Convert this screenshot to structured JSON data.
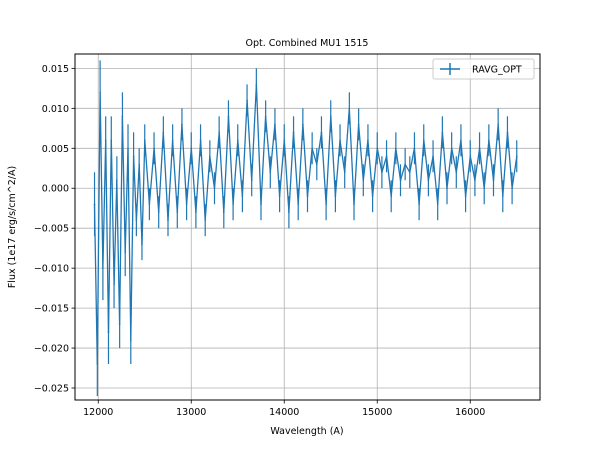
{
  "chart_data": {
    "type": "line",
    "title": "Opt. Combined MU1 1515",
    "xlabel": "Wavelength (A)",
    "ylabel": "Flux (1e17 erg/s/cm^2/A)",
    "xlim": [
      11750,
      16750
    ],
    "ylim": [
      -0.0265,
      0.0168
    ],
    "xticks": [
      12000,
      13000,
      14000,
      15000,
      16000
    ],
    "xtick_labels": [
      "12000",
      "13000",
      "14000",
      "15000",
      "16000"
    ],
    "yticks": [
      -0.025,
      -0.02,
      -0.015,
      -0.01,
      -0.005,
      0.0,
      0.005,
      0.01,
      0.015
    ],
    "ytick_labels": [
      "−0.025",
      "−0.020",
      "−0.015",
      "−0.010",
      "−0.005",
      "0.000",
      "0.005",
      "0.010",
      "0.015"
    ],
    "grid": true,
    "legend_position": "top-right",
    "series": [
      {
        "name": "RAVG_OPT",
        "color": "#1f77b4",
        "errorbars": true,
        "x": [
          11960,
          11990,
          12020,
          12050,
          12080,
          12110,
          12140,
          12170,
          12200,
          12230,
          12260,
          12290,
          12320,
          12350,
          12380,
          12410,
          12440,
          12470,
          12500,
          12550,
          12600,
          12650,
          12700,
          12750,
          12800,
          12850,
          12900,
          12950,
          13000,
          13050,
          13100,
          13150,
          13200,
          13250,
          13300,
          13350,
          13400,
          13450,
          13500,
          13550,
          13600,
          13650,
          13700,
          13750,
          13800,
          13850,
          13900,
          13950,
          14000,
          14050,
          14100,
          14150,
          14200,
          14250,
          14300,
          14350,
          14400,
          14450,
          14500,
          14550,
          14600,
          14650,
          14700,
          14750,
          14800,
          14850,
          14900,
          14950,
          15000,
          15050,
          15100,
          15150,
          15200,
          15250,
          15300,
          15350,
          15400,
          15450,
          15500,
          15550,
          15600,
          15650,
          15700,
          15750,
          15800,
          15850,
          15900,
          15950,
          16000,
          16050,
          16100,
          16150,
          16200,
          16250,
          16300,
          16350,
          16400,
          16450,
          16500
        ],
        "y": [
          -0.002,
          -0.022,
          0.012,
          -0.01,
          0.006,
          -0.018,
          0.006,
          -0.012,
          0.001,
          -0.017,
          0.009,
          -0.008,
          0.005,
          -0.019,
          0.004,
          -0.004,
          0.003,
          -0.007,
          0.006,
          -0.002,
          0.005,
          -0.003,
          0.007,
          -0.004,
          0.006,
          -0.003,
          0.008,
          -0.002,
          0.005,
          -0.003,
          0.006,
          -0.004,
          0.004,
          0.0,
          0.007,
          -0.003,
          0.009,
          -0.002,
          0.006,
          -0.001,
          0.011,
          0.001,
          0.013,
          -0.002,
          0.009,
          0.002,
          0.008,
          -0.001,
          0.006,
          -0.003,
          0.007,
          -0.002,
          0.008,
          -0.001,
          0.005,
          0.003,
          0.007,
          -0.002,
          0.009,
          -0.001,
          0.006,
          0.002,
          0.01,
          -0.002,
          0.008,
          0.001,
          0.006,
          -0.001,
          0.005,
          0.002,
          0.004,
          -0.001,
          0.005,
          0.001,
          0.003,
          0.002,
          0.005,
          -0.002,
          0.006,
          0.001,
          0.004,
          -0.002,
          0.007,
          0.0,
          0.005,
          0.002,
          0.006,
          -0.001,
          0.004,
          0.001,
          0.005,
          0.0,
          0.006,
          0.001,
          0.008,
          -0.001,
          0.007,
          0.0,
          0.004
        ],
        "err": [
          0.004,
          0.004,
          0.004,
          0.004,
          0.003,
          0.004,
          0.003,
          0.003,
          0.003,
          0.003,
          0.003,
          0.003,
          0.003,
          0.003,
          0.003,
          0.002,
          0.002,
          0.002,
          0.002,
          0.002,
          0.002,
          0.002,
          0.002,
          0.002,
          0.002,
          0.002,
          0.002,
          0.002,
          0.002,
          0.002,
          0.002,
          0.002,
          0.002,
          0.002,
          0.002,
          0.002,
          0.002,
          0.002,
          0.002,
          0.002,
          0.002,
          0.002,
          0.002,
          0.002,
          0.002,
          0.002,
          0.002,
          0.002,
          0.002,
          0.002,
          0.002,
          0.002,
          0.002,
          0.002,
          0.002,
          0.002,
          0.002,
          0.002,
          0.002,
          0.002,
          0.002,
          0.002,
          0.002,
          0.002,
          0.002,
          0.002,
          0.002,
          0.002,
          0.002,
          0.002,
          0.002,
          0.002,
          0.002,
          0.002,
          0.002,
          0.002,
          0.002,
          0.002,
          0.002,
          0.002,
          0.002,
          0.002,
          0.002,
          0.002,
          0.002,
          0.002,
          0.002,
          0.002,
          0.002,
          0.002,
          0.002,
          0.002,
          0.002,
          0.002,
          0.002,
          0.002,
          0.002,
          0.002,
          0.002
        ]
      }
    ]
  }
}
